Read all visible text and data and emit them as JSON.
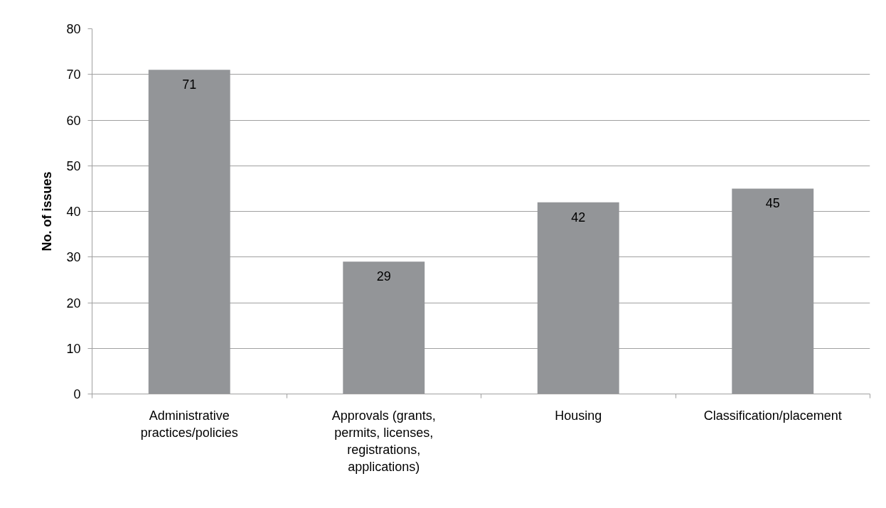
{
  "chart_data": {
    "type": "bar",
    "ylabel": "No. of issues",
    "categories": [
      "Administrative practices/policies",
      "Approvals (grants, permits, licenses, registrations, applications)",
      "Housing",
      "Classification/placement"
    ],
    "values": [
      71,
      29,
      42,
      45
    ],
    "color": "#939598",
    "ylim": [
      0,
      80
    ],
    "yticks": [
      0,
      10,
      20,
      30,
      40,
      50,
      60,
      70,
      80
    ],
    "grid": "y",
    "data_labels": true
  }
}
